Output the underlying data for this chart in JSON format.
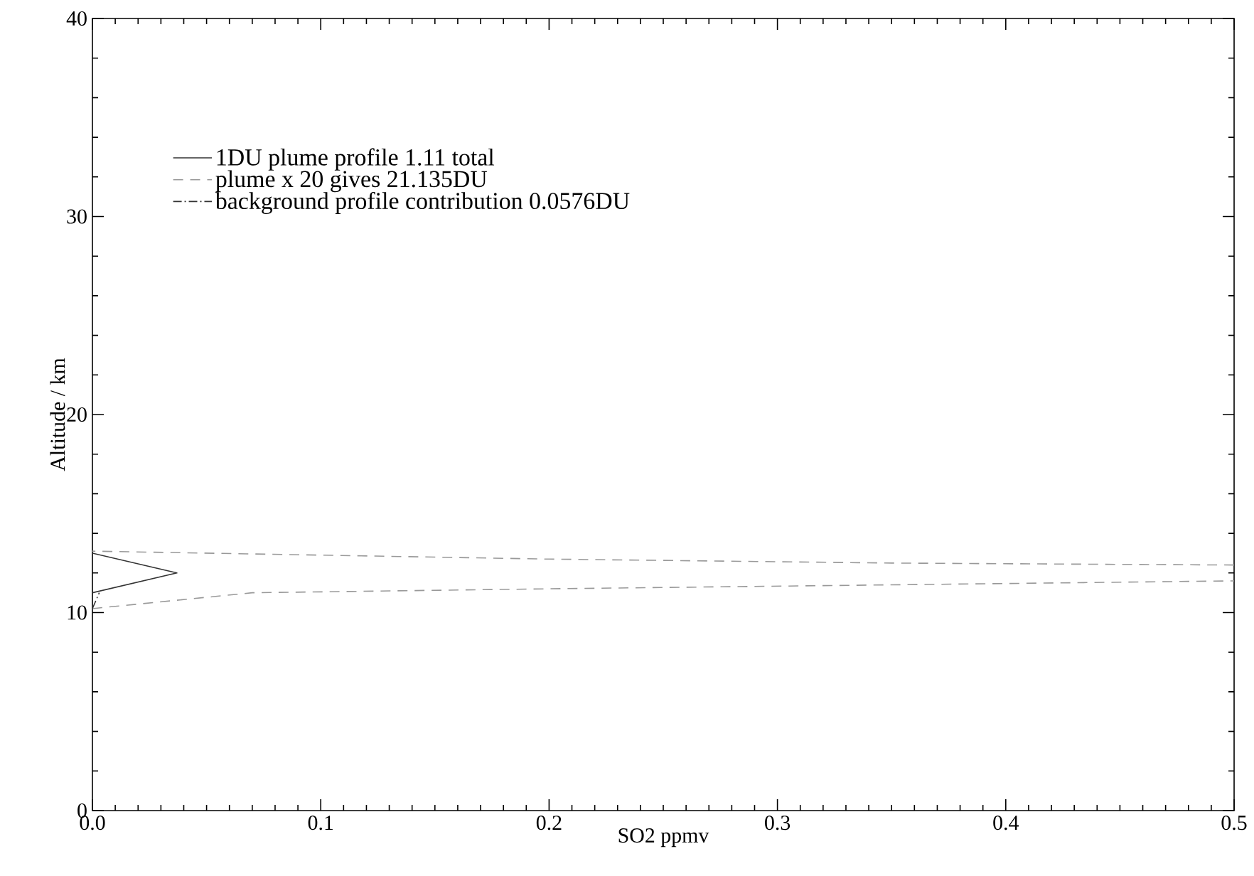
{
  "chart_data": {
    "type": "line",
    "xlabel": "SO2 ppmv",
    "ylabel": "Altitude / km",
    "xlim": [
      0,
      0.5
    ],
    "ylim": [
      0,
      40
    ],
    "xticks": [
      {
        "value": 0,
        "label": "0.0"
      },
      0.1,
      0.2,
      0.3,
      0.4,
      0.5
    ],
    "yticks": [
      0,
      10,
      20,
      30,
      40
    ],
    "legend": "top left",
    "grid": false,
    "marker": "none",
    "series": [
      {
        "name": "1DU plume profile 1.11 total",
        "color": "#333333",
        "line_style": "solid",
        "x": [
          0,
          0.037,
          0
        ],
        "values": [
          11,
          12,
          13
        ]
      },
      {
        "name": "plume x 20 gives 21.135DU",
        "color": "#999999",
        "line_style": "dashed",
        "x": [
          0,
          0.07,
          0.2,
          0.35,
          0.5,
          null,
          0.5,
          0.35,
          0.2,
          0.1,
          0
        ],
        "values": [
          10.2,
          11,
          11.2,
          11.4,
          11.6,
          null,
          12.4,
          12.5,
          12.7,
          12.9,
          13.1
        ]
      },
      {
        "name": "background profile contribution 0.0576DU",
        "color": "#333333",
        "line_style": "dashdotted",
        "x": [
          0,
          0.003
        ],
        "values": [
          10.2,
          11
        ]
      }
    ]
  }
}
